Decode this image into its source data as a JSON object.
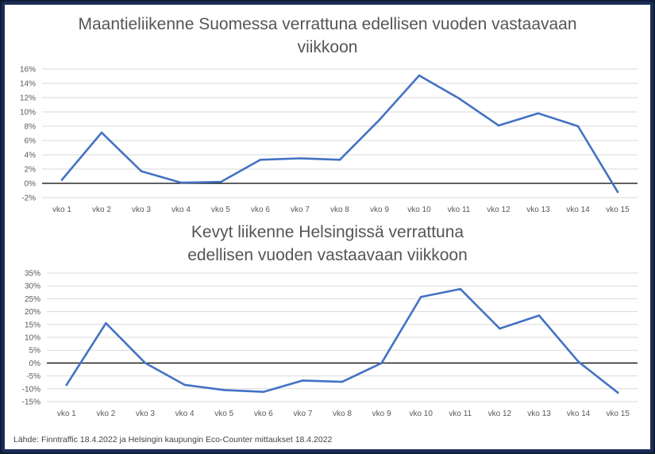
{
  "source_note": "Lähde: Finntraffic 18.4.2022 ja Helsingin kaupungin Eco-Counter mittaukset 18.4.2022",
  "colors": {
    "line": "#4472c4",
    "grid": "#d9d9d9",
    "axis_zero": "#000000",
    "text": "#595959"
  },
  "chart_data": [
    {
      "type": "line",
      "title_lines": [
        "Maantieliikenne Suomessa verrattuna edellisen vuoden vastaavaan",
        "viikkoon"
      ],
      "categories": [
        "vko 1",
        "vko 2",
        "vko 3",
        "vko 4",
        "vko 5",
        "vko 6",
        "vko 7",
        "vko 8",
        "vko 9",
        "vko 10",
        "vko 11",
        "vko 12",
        "vko 13",
        "vko 14",
        "vko 15"
      ],
      "values": [
        0.5,
        7.1,
        1.7,
        0.1,
        0.2,
        3.3,
        3.5,
        3.3,
        8.9,
        15.1,
        11.9,
        8.1,
        9.8,
        8.0,
        -1.2
      ],
      "ylim": [
        -2,
        16
      ],
      "yticks": [
        -2,
        0,
        2,
        4,
        6,
        8,
        10,
        12,
        14,
        16
      ],
      "yunit": "%",
      "grid": true,
      "legend": "none"
    },
    {
      "type": "line",
      "title_lines": [
        "Kevyt liikenne Helsingissä verrattuna",
        "edellisen vuoden vastaavaan viikkoon"
      ],
      "categories": [
        "vko 1",
        "vko 2",
        "vko 3",
        "vko 4",
        "vko 5",
        "vko 6",
        "vko 7",
        "vko 8",
        "vko 9",
        "vko 10",
        "vko 11",
        "vko 12",
        "vko 13",
        "vko 14",
        "vko 15"
      ],
      "values": [
        -8.5,
        15.5,
        0,
        -8.5,
        -10.5,
        -11.2,
        -6.8,
        -7.3,
        0,
        25.7,
        28.8,
        13.4,
        18.5,
        0.5,
        -11.5
      ],
      "ylim": [
        -15,
        35
      ],
      "yticks": [
        -15,
        -10,
        -5,
        0,
        5,
        10,
        15,
        20,
        25,
        30,
        35
      ],
      "yunit": "%",
      "grid": true,
      "legend": "none"
    }
  ]
}
